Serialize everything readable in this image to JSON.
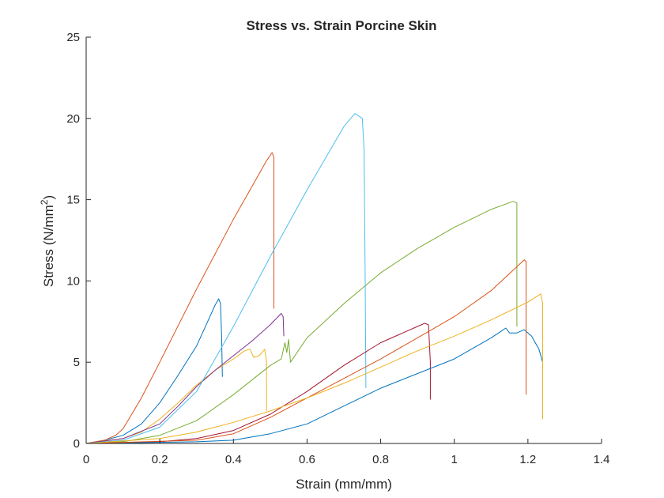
{
  "chart_data": {
    "type": "line",
    "title": "Stress vs. Strain Porcine Skin",
    "xlabel": "Strain (mm/mm)",
    "ylabel": {
      "base": "Stress (N/mm",
      "superscript": "2",
      "close": ")"
    },
    "xlim": [
      0,
      1.4
    ],
    "ylim": [
      0,
      25
    ],
    "xticks": [
      0,
      0.2,
      0.4,
      0.6,
      0.8,
      1,
      1.2,
      1.4
    ],
    "xtick_labels": [
      "0",
      "0.2",
      "0.4",
      "0.6",
      "0.8",
      "1",
      "1.2",
      "1.4"
    ],
    "yticks": [
      0,
      5,
      10,
      15,
      20,
      25
    ],
    "ytick_labels": [
      "0",
      "5",
      "10",
      "15",
      "20",
      "25"
    ],
    "grid": false,
    "series": [
      {
        "color": "#0072BD",
        "points": [
          [
            0,
            0
          ],
          [
            0.05,
            0.2
          ],
          [
            0.1,
            0.5
          ],
          [
            0.15,
            1.2
          ],
          [
            0.2,
            2.5
          ],
          [
            0.25,
            4.2
          ],
          [
            0.3,
            6.0
          ],
          [
            0.33,
            7.5
          ],
          [
            0.35,
            8.5
          ],
          [
            0.36,
            8.9
          ],
          [
            0.365,
            8.6
          ],
          [
            0.368,
            6.5
          ],
          [
            0.37,
            4.1
          ]
        ]
      },
      {
        "color": "#D95319",
        "points": [
          [
            0,
            0
          ],
          [
            0.05,
            0.2
          ],
          [
            0.08,
            0.5
          ],
          [
            0.1,
            0.9
          ],
          [
            0.15,
            2.8
          ],
          [
            0.2,
            5.0
          ],
          [
            0.3,
            9.5
          ],
          [
            0.4,
            13.8
          ],
          [
            0.45,
            15.8
          ],
          [
            0.49,
            17.4
          ],
          [
            0.505,
            17.9
          ],
          [
            0.51,
            17.6
          ],
          [
            0.51,
            8.3
          ]
        ]
      },
      {
        "color": "#EDB120",
        "points": [
          [
            0,
            0
          ],
          [
            0.1,
            0.3
          ],
          [
            0.15,
            0.7
          ],
          [
            0.2,
            1.5
          ],
          [
            0.25,
            2.5
          ],
          [
            0.3,
            3.6
          ],
          [
            0.35,
            4.5
          ],
          [
            0.4,
            5.2
          ],
          [
            0.43,
            5.7
          ],
          [
            0.445,
            5.8
          ],
          [
            0.455,
            5.3
          ],
          [
            0.47,
            5.4
          ],
          [
            0.485,
            5.8
          ],
          [
            0.49,
            5.0
          ],
          [
            0.49,
            2.0
          ]
        ]
      },
      {
        "color": "#7E2F8E",
        "points": [
          [
            0,
            0
          ],
          [
            0.1,
            0.3
          ],
          [
            0.2,
            1.2
          ],
          [
            0.25,
            2.3
          ],
          [
            0.3,
            3.5
          ],
          [
            0.35,
            4.5
          ],
          [
            0.4,
            5.4
          ],
          [
            0.45,
            6.3
          ],
          [
            0.5,
            7.3
          ],
          [
            0.53,
            8.0
          ],
          [
            0.535,
            7.8
          ],
          [
            0.537,
            6.6
          ]
        ]
      },
      {
        "color": "#77AC30",
        "points": [
          [
            0,
            0
          ],
          [
            0.1,
            0.1
          ],
          [
            0.2,
            0.5
          ],
          [
            0.3,
            1.4
          ],
          [
            0.4,
            3.0
          ],
          [
            0.5,
            4.8
          ],
          [
            0.53,
            5.2
          ],
          [
            0.54,
            6.2
          ],
          [
            0.545,
            5.6
          ],
          [
            0.55,
            6.4
          ],
          [
            0.555,
            5.0
          ],
          [
            0.6,
            6.5
          ],
          [
            0.7,
            8.6
          ],
          [
            0.8,
            10.5
          ],
          [
            0.9,
            12.0
          ],
          [
            1.0,
            13.3
          ],
          [
            1.1,
            14.4
          ],
          [
            1.16,
            14.9
          ],
          [
            1.17,
            14.8
          ],
          [
            1.17,
            7.2
          ]
        ]
      },
      {
        "color": "#4DBEEE",
        "points": [
          [
            0,
            0
          ],
          [
            0.1,
            0.2
          ],
          [
            0.2,
            1.0
          ],
          [
            0.3,
            3.2
          ],
          [
            0.4,
            7.2
          ],
          [
            0.5,
            11.5
          ],
          [
            0.6,
            15.6
          ],
          [
            0.7,
            19.5
          ],
          [
            0.73,
            20.3
          ],
          [
            0.75,
            20.0
          ],
          [
            0.755,
            18.0
          ],
          [
            0.758,
            10.0
          ],
          [
            0.76,
            3.4
          ]
        ]
      },
      {
        "color": "#A2142F",
        "points": [
          [
            0,
            0
          ],
          [
            0.2,
            0.1
          ],
          [
            0.3,
            0.3
          ],
          [
            0.4,
            0.8
          ],
          [
            0.5,
            1.8
          ],
          [
            0.6,
            3.2
          ],
          [
            0.7,
            4.8
          ],
          [
            0.8,
            6.2
          ],
          [
            0.9,
            7.2
          ],
          [
            0.92,
            7.4
          ],
          [
            0.93,
            7.3
          ],
          [
            0.935,
            5.0
          ],
          [
            0.935,
            2.7
          ]
        ]
      },
      {
        "color": "#0072BD",
        "points": [
          [
            0,
            0
          ],
          [
            0.3,
            0.1
          ],
          [
            0.4,
            0.2
          ],
          [
            0.5,
            0.6
          ],
          [
            0.6,
            1.2
          ],
          [
            0.7,
            2.3
          ],
          [
            0.8,
            3.4
          ],
          [
            0.9,
            4.3
          ],
          [
            1.0,
            5.2
          ],
          [
            1.1,
            6.5
          ],
          [
            1.14,
            7.1
          ],
          [
            1.15,
            6.8
          ],
          [
            1.17,
            6.8
          ],
          [
            1.19,
            7.0
          ],
          [
            1.21,
            6.6
          ],
          [
            1.23,
            5.8
          ],
          [
            1.24,
            5.0
          ],
          [
            1.24,
            4.4
          ]
        ]
      },
      {
        "color": "#D95319",
        "points": [
          [
            0,
            0
          ],
          [
            0.3,
            0.2
          ],
          [
            0.4,
            0.6
          ],
          [
            0.5,
            1.6
          ],
          [
            0.6,
            2.8
          ],
          [
            0.7,
            4.0
          ],
          [
            0.8,
            5.2
          ],
          [
            0.9,
            6.5
          ],
          [
            1.0,
            7.8
          ],
          [
            1.1,
            9.4
          ],
          [
            1.19,
            11.3
          ],
          [
            1.195,
            11.2
          ],
          [
            1.195,
            3.0
          ]
        ]
      },
      {
        "color": "#EDB120",
        "points": [
          [
            0,
            0
          ],
          [
            0.2,
            0.3
          ],
          [
            0.3,
            0.7
          ],
          [
            0.4,
            1.3
          ],
          [
            0.5,
            2.0
          ],
          [
            0.6,
            2.8
          ],
          [
            0.7,
            3.7
          ],
          [
            0.8,
            4.7
          ],
          [
            0.9,
            5.7
          ],
          [
            1.0,
            6.6
          ],
          [
            1.1,
            7.6
          ],
          [
            1.2,
            8.7
          ],
          [
            1.235,
            9.2
          ],
          [
            1.24,
            8.6
          ],
          [
            1.24,
            1.5
          ]
        ]
      }
    ]
  }
}
